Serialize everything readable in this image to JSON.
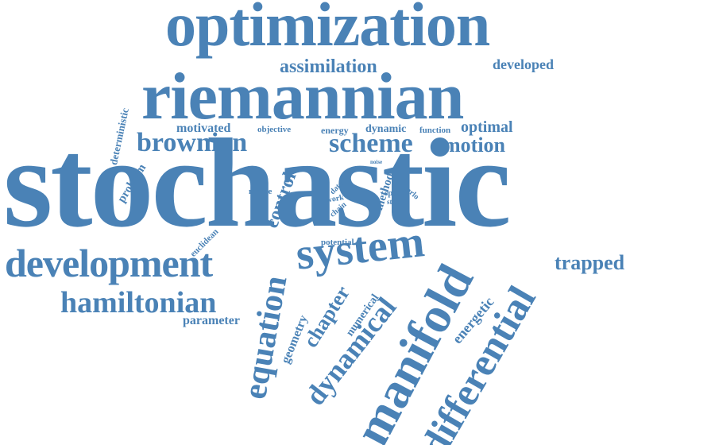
{
  "accent_color": "#4a82b6",
  "words": {
    "stochastic": "stochastic",
    "optimization": "optimization",
    "riemannian": "riemannian",
    "system": "system",
    "development": "development",
    "manifold": "manifold",
    "differential": "differential",
    "equation": "equation",
    "dynamical": "dynamical",
    "hamiltonian": "hamiltonian",
    "brownian": "brownian",
    "scheme": "scheme",
    "motion": "motion",
    "assimilation": "assimilation",
    "developed": "developed",
    "trapped": "trapped",
    "control": "control",
    "chapter": "chapter",
    "optimal": "optimal",
    "motivated": "motivated",
    "deterministic": "deterministic",
    "problem": "problem",
    "parameter": "parameter",
    "geometry": "geometry",
    "numerical": "numerical",
    "energetic": "energetic",
    "euclidean": "euclidean",
    "monte": "monte",
    "objective": "objective",
    "energy": "energy",
    "dynamic": "dynamic",
    "function": "function",
    "method": "method",
    "data": "data",
    "work": "work",
    "chain": "chain",
    "space": "space",
    "carlo": "carlo",
    "noise": "noise",
    "state": "state",
    "potential": "potential"
  }
}
